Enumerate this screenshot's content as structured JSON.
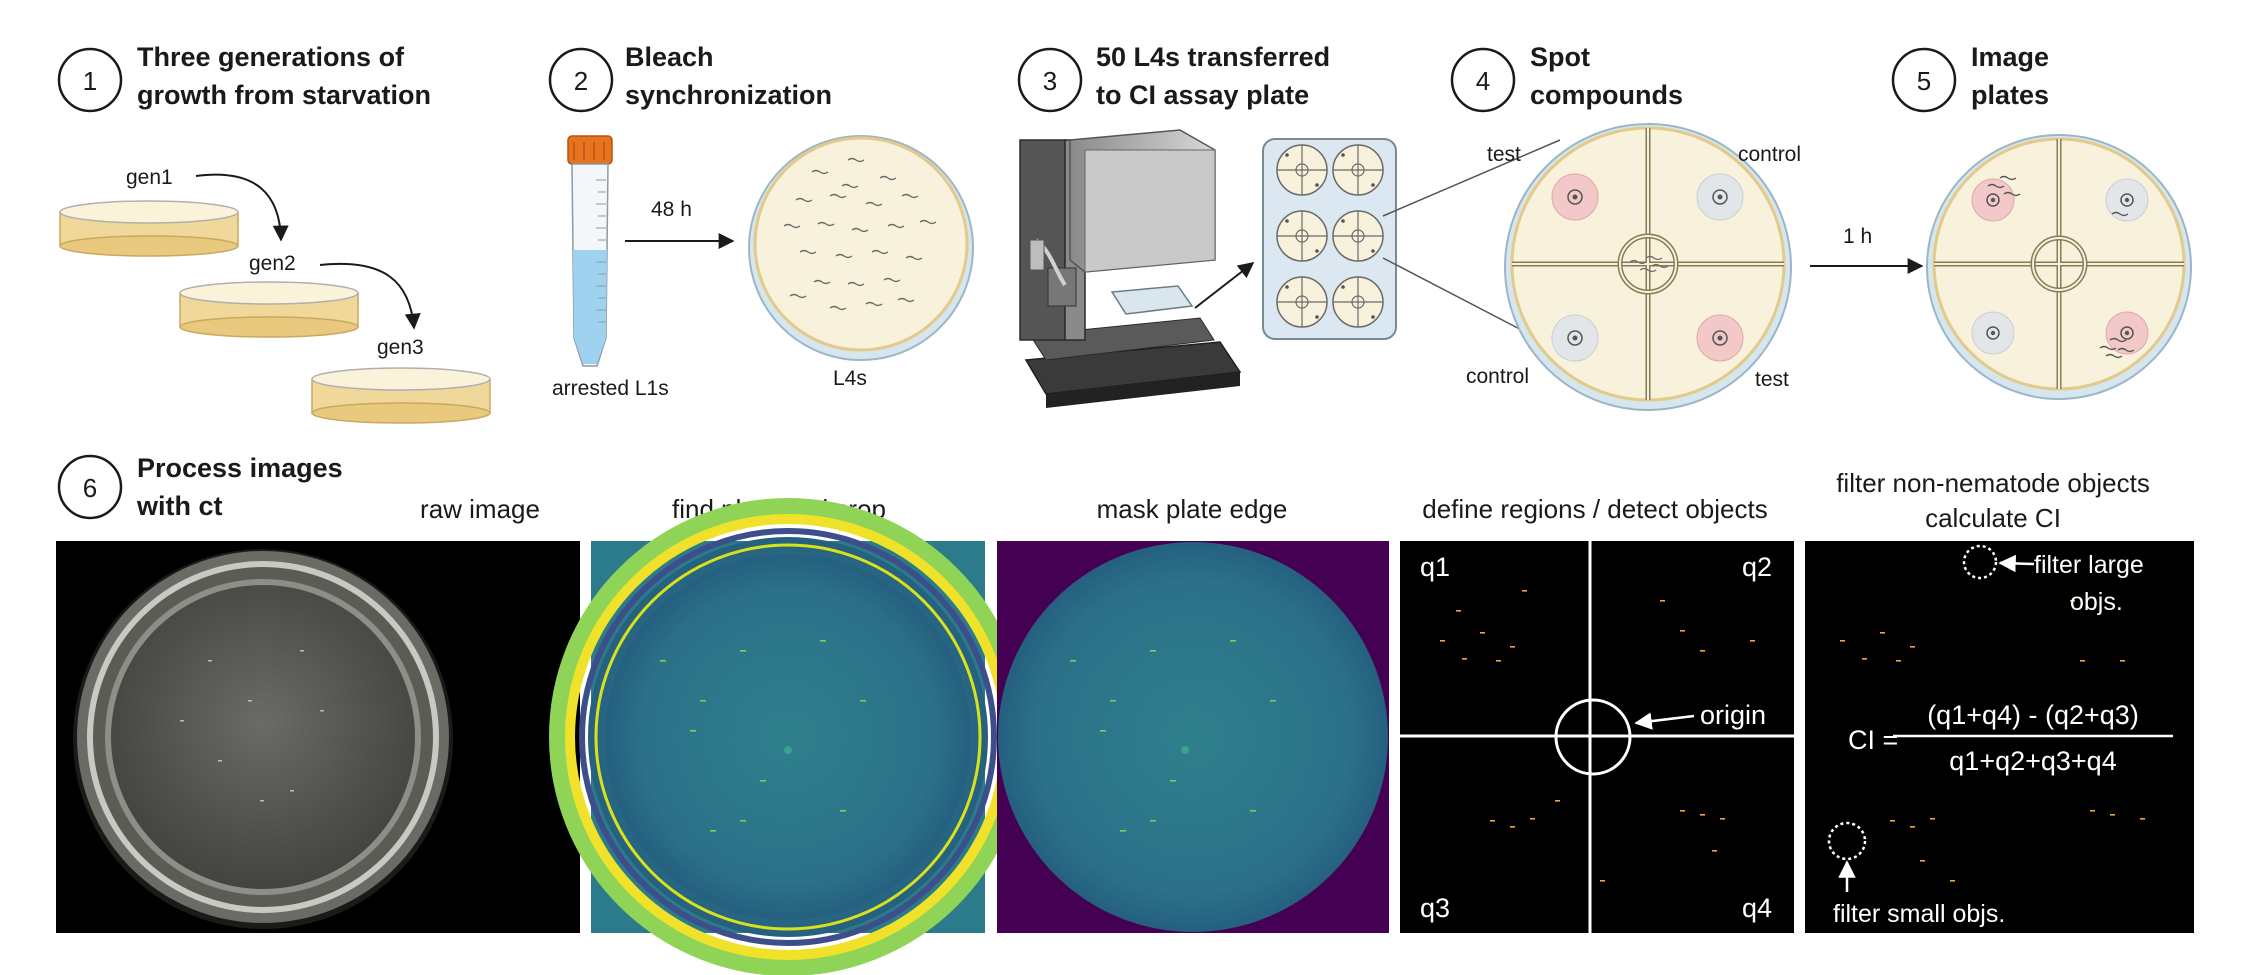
{
  "steps": [
    {
      "number": "1",
      "title_line1": "Three generations of",
      "title_line2": "growth from starvation"
    },
    {
      "number": "2",
      "title_line1": "Bleach",
      "title_line2": "synchronization"
    },
    {
      "number": "3",
      "title_line1": "50 L4s transferred",
      "title_line2": "to CI assay plate"
    },
    {
      "number": "4",
      "title_line1": "Spot",
      "title_line2": "compounds"
    },
    {
      "number": "5",
      "title_line1": "Image",
      "title_line2": "plates"
    },
    {
      "number": "6",
      "title_line1": "Process images",
      "title_line2": "with ct"
    }
  ],
  "step1": {
    "gen1": "gen1",
    "gen2": "gen2",
    "gen3": "gen3"
  },
  "step2": {
    "tube_label": "arrested L1s",
    "time_label": "48 h",
    "plate_label": "L4s"
  },
  "step4": {
    "test_top": "test",
    "control_top": "control",
    "control_bottom": "control",
    "test_bottom": "test"
  },
  "step5": {
    "time_label": "1 h"
  },
  "panels": {
    "raw": "raw image",
    "crop": "find plate and crop",
    "mask": "mask plate edge",
    "regions": "define regions / detect objects",
    "filter_line1": "filter non-nematode objects",
    "filter_line2": "calculate CI"
  },
  "regions": {
    "q1": "q1",
    "q2": "q2",
    "q3": "q3",
    "q4": "q4",
    "origin": "origin"
  },
  "filter": {
    "large_line1": "filter large",
    "large_line2": "objs.",
    "small": "filter small objs.",
    "ci_lhs": "CI =",
    "ci_numerator": "(q1+q4) - (q2+q3)",
    "ci_denominator": "q1+q2+q3+q4"
  },
  "colors": {
    "agar": "#f8f1dc",
    "plate_rim": "#b9d6e6",
    "agar_dish": "#f0d79a",
    "tube_cap": "#e8731f",
    "tube_liquid": "#9fd2ee",
    "viridis_dark": "#3b2d6b",
    "viridis_mid": "#2f7e8b",
    "viridis_yellow": "#f0e22a",
    "worm_orange": "#f0a640",
    "test_spot": "#f2c8c8",
    "control_spot": "#e2e6e8"
  }
}
